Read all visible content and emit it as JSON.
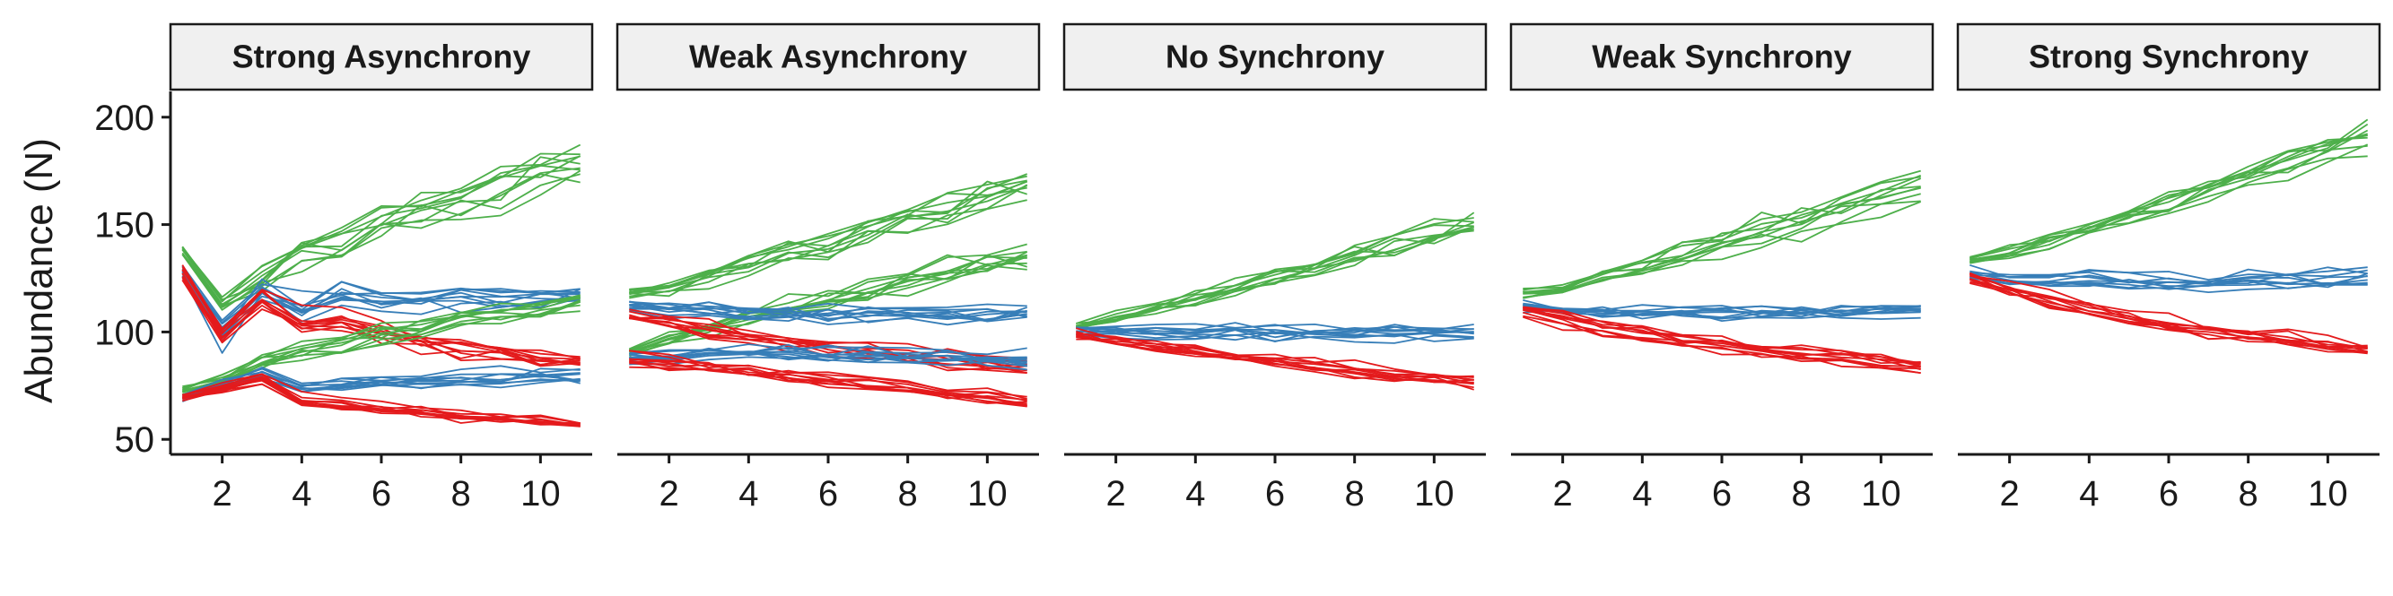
{
  "chart_data": {
    "type": "line",
    "ylabel": "Abundance (N)",
    "xlabel": "",
    "xlim": [
      0.7,
      11.3
    ],
    "ylim": [
      43,
      212
    ],
    "xticks": [
      2,
      4,
      6,
      8,
      10
    ],
    "yticks": [
      50,
      100,
      150,
      200
    ],
    "replicates_per_species": 10,
    "series_colors": {
      "green": "#4daf4a",
      "blue": "#377eb8",
      "red": "#e41a1c"
    },
    "strip_fill": "#f0f0f0",
    "panels": [
      {
        "title": "Strong Asynchrony",
        "series": [
          {
            "color_key": "green",
            "x": [
              1,
              2,
              3,
              4,
              5,
              6,
              7,
              8,
              9,
              10,
              11
            ],
            "mean": [
              138,
              113,
              125,
              136,
              141,
              150,
              156,
              161,
              167,
              174,
              179
            ],
            "spread": [
              3,
              6,
              8,
              9,
              10,
              10,
              11,
              11,
              12,
              12,
              11
            ]
          },
          {
            "color_key": "blue",
            "x": [
              1,
              2,
              3,
              4,
              5,
              6,
              7,
              8,
              9,
              10,
              11
            ],
            "mean": [
              128,
              100,
              119,
              111,
              118,
              115,
              116,
              117,
              116,
              116,
              117
            ],
            "spread": [
              5,
              8,
              6,
              7,
              7,
              7,
              7,
              7,
              7,
              7,
              6
            ]
          },
          {
            "color_key": "red",
            "x": [
              1,
              2,
              3,
              4,
              5,
              6,
              7,
              8,
              9,
              10,
              11
            ],
            "mean": [
              128,
              99,
              115,
              104,
              105,
              99,
              96,
              93,
              91,
              88,
              87
            ],
            "spread": [
              5,
              7,
              6,
              7,
              7,
              6,
              6,
              6,
              5,
              5,
              5
            ]
          },
          {
            "color_key": "green",
            "x": [
              1,
              2,
              3,
              4,
              5,
              6,
              7,
              8,
              9,
              10,
              11
            ],
            "mean": [
              73,
              77,
              87,
              91,
              95,
              99,
              102,
              106,
              109,
              112,
              115
            ],
            "spread": [
              2,
              3,
              4,
              5,
              5,
              5,
              6,
              6,
              6,
              6,
              6
            ]
          },
          {
            "color_key": "blue",
            "x": [
              1,
              2,
              3,
              4,
              5,
              6,
              7,
              8,
              9,
              10,
              11
            ],
            "mean": [
              70,
              75,
              82,
              75,
              76,
              77,
              77,
              78,
              79,
              80,
              80
            ],
            "spread": [
              3,
              3,
              4,
              4,
              4,
              4,
              4,
              5,
              5,
              5,
              5
            ]
          },
          {
            "color_key": "red",
            "x": [
              1,
              2,
              3,
              4,
              5,
              6,
              7,
              8,
              9,
              10,
              11
            ],
            "mean": [
              70,
              74,
              79,
              68,
              67,
              65,
              63,
              61,
              60,
              59,
              57
            ],
            "spread": [
              3,
              3,
              4,
              4,
              4,
              4,
              3,
              3,
              3,
              3,
              3
            ]
          }
        ]
      },
      {
        "title": "Weak Asynchrony",
        "series": [
          {
            "color_key": "green",
            "x": [
              1,
              2,
              3,
              4,
              5,
              6,
              7,
              8,
              9,
              10,
              11
            ],
            "mean": [
              118,
              120,
              126,
              131,
              136,
              141,
              147,
              152,
              157,
              163,
              168
            ],
            "spread": [
              3,
              4,
              5,
              6,
              7,
              8,
              8,
              9,
              9,
              10,
              10
            ]
          },
          {
            "color_key": "green",
            "x": [
              1,
              2,
              3,
              4,
              5,
              6,
              7,
              8,
              9,
              10,
              11
            ],
            "mean": [
              90,
              96,
              101,
              106,
              110,
              114,
              118,
              122,
              126,
              130,
              134
            ],
            "spread": [
              3,
              4,
              5,
              6,
              6,
              7,
              7,
              8,
              8,
              8,
              8
            ]
          },
          {
            "color_key": "blue",
            "x": [
              1,
              2,
              3,
              4,
              5,
              6,
              7,
              8,
              9,
              10,
              11
            ],
            "mean": [
              112,
              110,
              110,
              109,
              108,
              108,
              108,
              108,
              108,
              108,
              108
            ],
            "spread": [
              4,
              5,
              5,
              5,
              6,
              6,
              6,
              6,
              6,
              6,
              6
            ]
          },
          {
            "color_key": "red",
            "x": [
              1,
              2,
              3,
              4,
              5,
              6,
              7,
              8,
              9,
              10,
              11
            ],
            "mean": [
              108,
              104,
              101,
              98,
              95,
              93,
              91,
              89,
              87,
              85,
              83
            ],
            "spread": [
              4,
              5,
              5,
              5,
              5,
              5,
              5,
              5,
              5,
              5,
              5
            ]
          },
          {
            "color_key": "blue",
            "x": [
              1,
              2,
              3,
              4,
              5,
              6,
              7,
              8,
              9,
              10,
              11
            ],
            "mean": [
              88,
              89,
              90,
              90,
              90,
              89,
              89,
              88,
              88,
              87,
              87
            ],
            "spread": [
              4,
              4,
              4,
              5,
              5,
              5,
              5,
              5,
              5,
              5,
              5
            ]
          },
          {
            "color_key": "red",
            "x": [
              1,
              2,
              3,
              4,
              5,
              6,
              7,
              8,
              9,
              10,
              11
            ],
            "mean": [
              88,
              86,
              84,
              82,
              80,
              78,
              76,
              74,
              72,
              70,
              68
            ],
            "spread": [
              4,
              4,
              4,
              4,
              4,
              4,
              4,
              4,
              4,
              4,
              4
            ]
          }
        ]
      },
      {
        "title": "No Synchrony",
        "series": [
          {
            "color_key": "green",
            "x": [
              1,
              2,
              3,
              4,
              5,
              6,
              7,
              8,
              9,
              10,
              11
            ],
            "mean": [
              103,
              107,
              111,
              116,
              121,
              126,
              131,
              136,
              141,
              146,
              151
            ],
            "spread": [
              2,
              3,
              4,
              5,
              5,
              6,
              6,
              7,
              7,
              7,
              7
            ]
          },
          {
            "color_key": "blue",
            "x": [
              1,
              2,
              3,
              4,
              5,
              6,
              7,
              8,
              9,
              10,
              11
            ],
            "mean": [
              101,
              100,
              100,
              100,
              100,
              100,
              100,
              100,
              100,
              100,
              100
            ],
            "spread": [
              3,
              4,
              4,
              5,
              5,
              5,
              5,
              5,
              5,
              5,
              5
            ]
          },
          {
            "color_key": "red",
            "x": [
              1,
              2,
              3,
              4,
              5,
              6,
              7,
              8,
              9,
              10,
              11
            ],
            "mean": [
              99,
              96,
              93,
              91,
              89,
              87,
              85,
              83,
              81,
              79,
              77
            ],
            "spread": [
              3,
              3,
              4,
              4,
              4,
              4,
              4,
              4,
              4,
              4,
              4
            ]
          }
        ]
      },
      {
        "title": "Weak Synchrony",
        "series": [
          {
            "color_key": "green",
            "x": [
              1,
              2,
              3,
              4,
              5,
              6,
              7,
              8,
              9,
              10,
              11
            ],
            "mean": [
              118,
              120,
              126,
              131,
              136,
              141,
              147,
              152,
              158,
              164,
              170
            ],
            "spread": [
              3,
              4,
              5,
              6,
              7,
              7,
              8,
              8,
              9,
              9,
              9
            ]
          },
          {
            "color_key": "blue",
            "x": [
              1,
              2,
              3,
              4,
              5,
              6,
              7,
              8,
              9,
              10,
              11
            ],
            "mean": [
              113,
              111,
              110,
              110,
              110,
              110,
              110,
              110,
              110,
              111,
              111
            ],
            "spread": [
              4,
              4,
              5,
              5,
              5,
              5,
              5,
              5,
              5,
              5,
              5
            ]
          },
          {
            "color_key": "red",
            "x": [
              1,
              2,
              3,
              4,
              5,
              6,
              7,
              8,
              9,
              10,
              11
            ],
            "mean": [
              110,
              106,
              102,
              99,
              96,
              94,
              92,
              90,
              88,
              86,
              84
            ],
            "spread": [
              4,
              4,
              4,
              4,
              4,
              4,
              4,
              4,
              4,
              4,
              4
            ]
          }
        ]
      },
      {
        "title": "Strong Synchrony",
        "series": [
          {
            "color_key": "green",
            "x": [
              1,
              2,
              3,
              4,
              5,
              6,
              7,
              8,
              9,
              10,
              11
            ],
            "mean": [
              133,
              136,
              141,
              147,
              153,
              159,
              165,
              171,
              177,
              184,
              190
            ],
            "spread": [
              3,
              4,
              5,
              6,
              6,
              7,
              7,
              8,
              8,
              9,
              9
            ]
          },
          {
            "color_key": "blue",
            "x": [
              1,
              2,
              3,
              4,
              5,
              6,
              7,
              8,
              9,
              10,
              11
            ],
            "mean": [
              128,
              125,
              124,
              124,
              124,
              124,
              124,
              125,
              125,
              126,
              126
            ],
            "spread": [
              4,
              4,
              5,
              5,
              5,
              5,
              5,
              5,
              5,
              5,
              5
            ]
          },
          {
            "color_key": "red",
            "x": [
              1,
              2,
              3,
              4,
              5,
              6,
              7,
              8,
              9,
              10,
              11
            ],
            "mean": [
              126,
              120,
              115,
              111,
              107,
              104,
              101,
              99,
              97,
              95,
              93
            ],
            "spread": [
              4,
              4,
              4,
              5,
              5,
              5,
              5,
              5,
              5,
              5,
              5
            ]
          }
        ]
      }
    ]
  }
}
